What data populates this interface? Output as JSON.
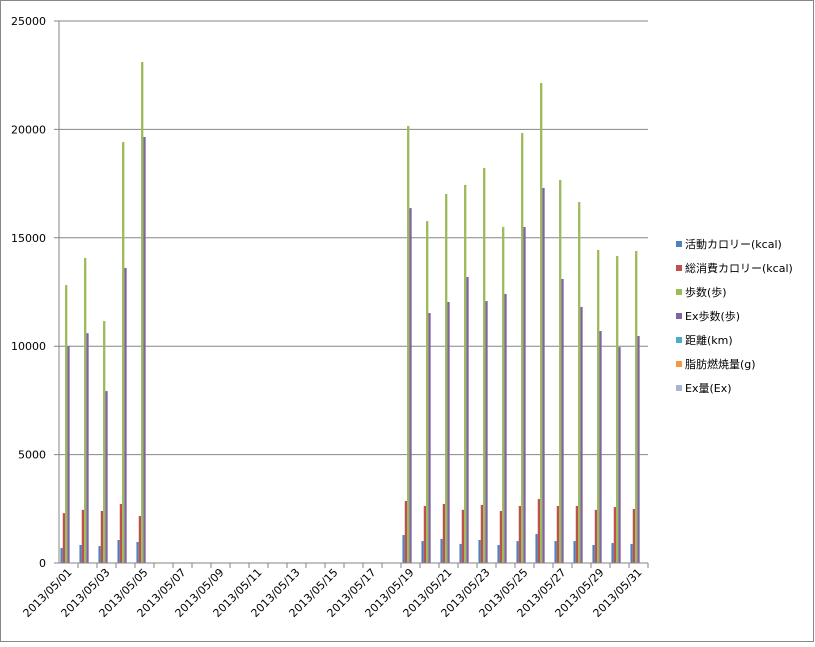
{
  "chart_data": {
    "type": "bar",
    "categories": [
      "2013/05/01",
      null,
      "2013/05/03",
      null,
      "2013/05/05",
      null,
      "2013/05/07",
      null,
      "2013/05/09",
      null,
      "2013/05/11",
      null,
      "2013/05/13",
      null,
      "2013/05/15",
      null,
      "2013/05/17",
      null,
      "2013/05/19",
      null,
      "2013/05/21",
      null,
      "2013/05/23",
      null,
      "2013/05/25",
      null,
      "2013/05/27",
      null,
      "2013/05/29",
      null,
      "2013/05/31"
    ],
    "series": [
      {
        "name": "活動カロリー(kcal)",
        "color": "#4f81bd",
        "values": [
          690,
          830,
          780,
          1060,
          970,
          null,
          null,
          null,
          null,
          null,
          null,
          null,
          null,
          null,
          null,
          null,
          null,
          null,
          1290,
          1010,
          1110,
          880,
          1060,
          830,
          1010,
          1340,
          1010,
          1010,
          830,
          920,
          880
        ]
      },
      {
        "name": "総消費カロリー(kcal)",
        "color": "#c0504d",
        "values": [
          2300,
          2450,
          2400,
          2720,
          2170,
          null,
          null,
          null,
          null,
          null,
          null,
          null,
          null,
          null,
          null,
          null,
          null,
          null,
          2860,
          2630,
          2720,
          2450,
          2680,
          2400,
          2630,
          2950,
          2630,
          2630,
          2450,
          2580,
          2490
        ]
      },
      {
        "name": "歩数(歩)",
        "color": "#9bbb59",
        "values": [
          12820,
          14070,
          11160,
          19420,
          23110,
          null,
          null,
          null,
          null,
          null,
          null,
          null,
          null,
          null,
          null,
          null,
          null,
          null,
          20160,
          15770,
          17020,
          17440,
          18220,
          15500,
          19830,
          22140,
          17670,
          16650,
          14440,
          14160,
          14390
        ]
      },
      {
        "name": "Ex歩数(歩)",
        "color": "#8064a2",
        "values": [
          10000,
          10600,
          7930,
          13610,
          19650,
          null,
          null,
          null,
          null,
          null,
          null,
          null,
          null,
          null,
          null,
          null,
          null,
          null,
          16370,
          11530,
          12040,
          13190,
          12080,
          12410,
          15500,
          17300,
          13100,
          11810,
          10700,
          9960,
          10470
        ]
      },
      {
        "name": "距離(km)",
        "color": "#4bacc6",
        "values": [
          0,
          0,
          0,
          0,
          0,
          null,
          null,
          null,
          null,
          null,
          null,
          null,
          null,
          null,
          null,
          null,
          null,
          null,
          0,
          0,
          0,
          0,
          0,
          0,
          0,
          0,
          0,
          0,
          0,
          0,
          0
        ]
      },
      {
        "name": "脂肪燃焼量(g)",
        "color": "#f79646",
        "values": [
          0,
          0,
          0,
          0,
          0,
          null,
          null,
          null,
          null,
          null,
          null,
          null,
          null,
          null,
          null,
          null,
          null,
          null,
          0,
          0,
          0,
          0,
          0,
          0,
          0,
          0,
          0,
          0,
          0,
          0,
          0
        ]
      },
      {
        "name": "Ex量(Ex)",
        "color": "#a5b5d5",
        "values": [
          0,
          0,
          0,
          0,
          0,
          null,
          null,
          null,
          null,
          null,
          null,
          null,
          null,
          null,
          null,
          null,
          null,
          null,
          0,
          0,
          0,
          0,
          0,
          0,
          0,
          0,
          0,
          0,
          0,
          0,
          0
        ]
      }
    ],
    "ylim": [
      0,
      25000
    ],
    "yticks": [
      0,
      5000,
      10000,
      15000,
      20000,
      25000
    ],
    "grid": true,
    "legend": "right"
  }
}
